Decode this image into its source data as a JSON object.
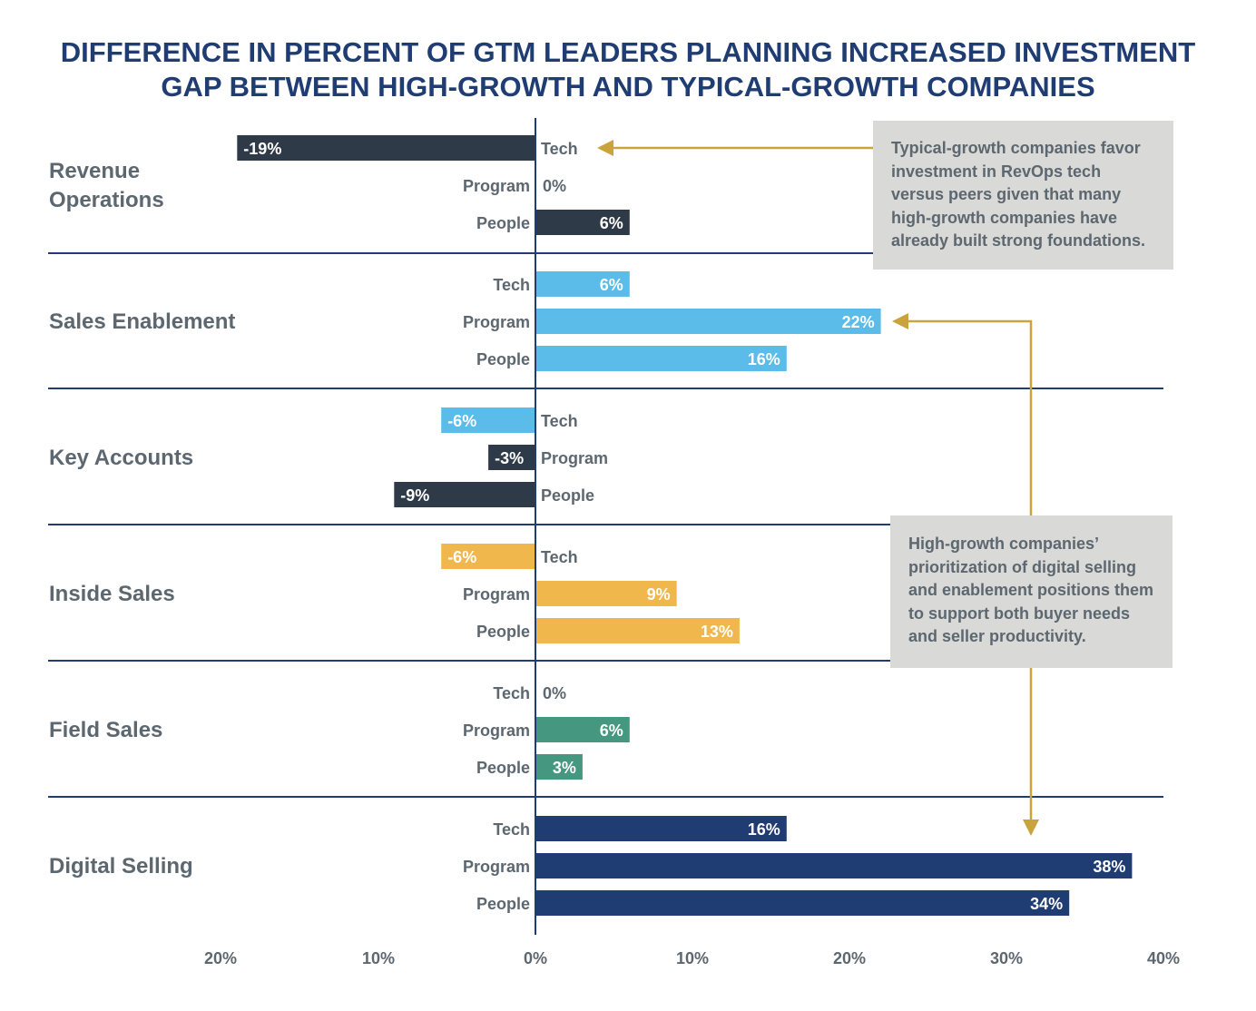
{
  "title_line1": "DIFFERENCE IN PERCENT OF GTM LEADERS PLANNING INCREASED INVESTMENT",
  "title_line2": "GAP BETWEEN HIGH-GROWTH AND TYPICAL-GROWTH COMPANIES",
  "annotations": [
    "Typical-growth companies favor investment in RevOps tech versus peers given that many high-growth companies have already built strong foundations.",
    "High-growth companies’ prioritization of digital selling and enablement positions them to support both buyer needs and seller productivity."
  ],
  "colors": {
    "title": "#1f3c73",
    "group_label": "#5d6770",
    "axis": "#1f3c73",
    "annotation_bg": "#d9d9d7",
    "arrow": "#c9a43c"
  },
  "chart_data": {
    "type": "bar",
    "orientation": "horizontal",
    "xlim": [
      -20,
      40
    ],
    "x_ticks": [
      {
        "value": -20,
        "label": "20%"
      },
      {
        "value": -10,
        "label": "10%"
      },
      {
        "value": 0,
        "label": "0%"
      },
      {
        "value": 10,
        "label": "10%"
      },
      {
        "value": 20,
        "label": "20%"
      },
      {
        "value": 30,
        "label": "30%"
      },
      {
        "value": 40,
        "label": "40%"
      }
    ],
    "groups": [
      {
        "name": "Revenue\nOperations",
        "color": "#2f3a48",
        "bars": [
          {
            "label": "Tech",
            "value": -19,
            "value_label": "-19%"
          },
          {
            "label": "Program",
            "value": 0,
            "value_label": "0%"
          },
          {
            "label": "People",
            "value": 6,
            "value_label": "6%"
          }
        ]
      },
      {
        "name": "Sales Enablement",
        "color": "#5bbce9",
        "bars": [
          {
            "label": "Tech",
            "value": 6,
            "value_label": "6%"
          },
          {
            "label": "Program",
            "value": 22,
            "value_label": "22%"
          },
          {
            "label": "People",
            "value": 16,
            "value_label": "16%"
          }
        ]
      },
      {
        "name": "Key Accounts",
        "color": "#2f3a48",
        "bars": [
          {
            "label": "Tech",
            "value": -6,
            "value_label": "-6%",
            "color": "#5bbce9"
          },
          {
            "label": "Program",
            "value": -3,
            "value_label": "-3%"
          },
          {
            "label": "People",
            "value": -9,
            "value_label": "-9%"
          }
        ]
      },
      {
        "name": "Inside Sales",
        "color": "#f0b84c",
        "bars": [
          {
            "label": "Tech",
            "value": -6,
            "value_label": "-6%"
          },
          {
            "label": "Program",
            "value": 9,
            "value_label": "9%"
          },
          {
            "label": "People",
            "value": 13,
            "value_label": "13%"
          }
        ]
      },
      {
        "name": "Field Sales",
        "color": "#45977f",
        "bars": [
          {
            "label": "Tech",
            "value": 0,
            "value_label": "0%"
          },
          {
            "label": "Program",
            "value": 6,
            "value_label": "6%"
          },
          {
            "label": "People",
            "value": 3,
            "value_label": "3%"
          }
        ]
      },
      {
        "name": "Digital Selling",
        "color": "#1f3c73",
        "bars": [
          {
            "label": "Tech",
            "value": 16,
            "value_label": "16%"
          },
          {
            "label": "Program",
            "value": 38,
            "value_label": "38%"
          },
          {
            "label": "People",
            "value": 34,
            "value_label": "34%"
          }
        ]
      }
    ]
  }
}
